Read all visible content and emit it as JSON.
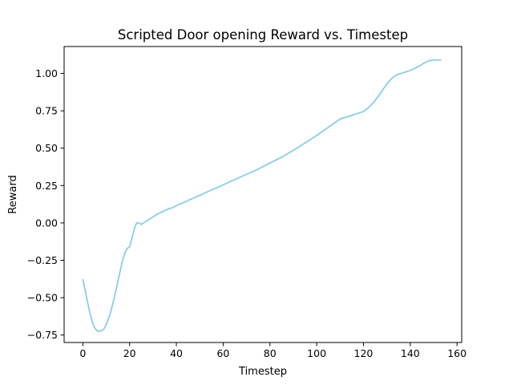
{
  "chart_data": {
    "type": "line",
    "title": "Scripted Door opening Reward vs. Timestep",
    "xlabel": "Timestep",
    "ylabel": "Reward",
    "xlim": [
      -8,
      162
    ],
    "ylim": [
      -0.8,
      1.18
    ],
    "xticks": [
      0,
      20,
      40,
      60,
      80,
      100,
      120,
      140,
      160
    ],
    "yticks": [
      -0.75,
      -0.5,
      -0.25,
      0.0,
      0.25,
      0.5,
      0.75,
      1.0
    ],
    "ytick_labels": [
      "−0.75",
      "−0.50",
      "−0.25",
      "0.00",
      "0.25",
      "0.50",
      "0.75",
      "1.00"
    ],
    "xtick_labels": [
      "0",
      "20",
      "40",
      "60",
      "80",
      "100",
      "120",
      "140",
      "160"
    ],
    "grid": false,
    "series": [
      {
        "color": "#87ceeb",
        "x": [
          0,
          1,
          2,
          3,
          4,
          5,
          6,
          7,
          8,
          9,
          10,
          11,
          12,
          13,
          14,
          15,
          16,
          17,
          18,
          19,
          20,
          21,
          22,
          23,
          24,
          25,
          26,
          27,
          28,
          29,
          30,
          32,
          34,
          36,
          38,
          40,
          45,
          50,
          55,
          60,
          65,
          70,
          75,
          80,
          85,
          90,
          95,
          100,
          105,
          110,
          115,
          120,
          122,
          124,
          126,
          128,
          130,
          132,
          134,
          136,
          138,
          140,
          142,
          144,
          146,
          148,
          150,
          152,
          153
        ],
        "y": [
          -0.38,
          -0.45,
          -0.53,
          -0.6,
          -0.66,
          -0.7,
          -0.72,
          -0.725,
          -0.72,
          -0.71,
          -0.68,
          -0.64,
          -0.59,
          -0.53,
          -0.46,
          -0.39,
          -0.32,
          -0.25,
          -0.2,
          -0.17,
          -0.16,
          -0.1,
          -0.04,
          0.0,
          0.0,
          -0.01,
          0.0,
          0.01,
          0.02,
          0.03,
          0.04,
          0.06,
          0.075,
          0.09,
          0.1,
          0.115,
          0.15,
          0.185,
          0.22,
          0.255,
          0.29,
          0.325,
          0.36,
          0.4,
          0.44,
          0.485,
          0.535,
          0.585,
          0.64,
          0.695,
          0.72,
          0.745,
          0.77,
          0.8,
          0.84,
          0.885,
          0.93,
          0.965,
          0.99,
          1.0,
          1.01,
          1.02,
          1.035,
          1.05,
          1.07,
          1.085,
          1.09,
          1.09,
          1.09
        ]
      }
    ]
  }
}
